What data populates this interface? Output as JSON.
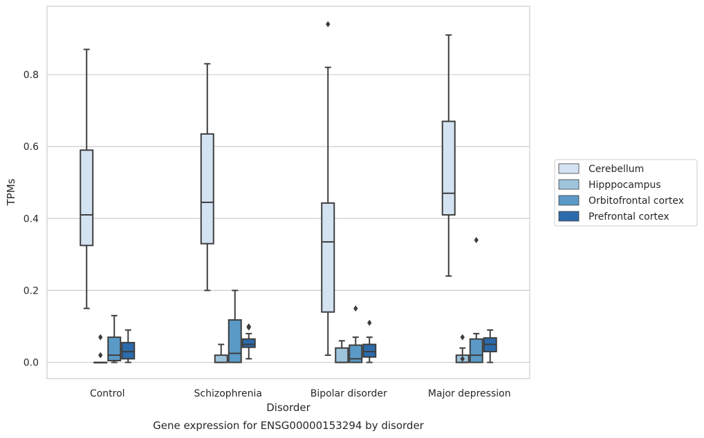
{
  "chart_data": {
    "type": "box",
    "title": "Gene expression for ENSG00000153294 by disorder",
    "xlabel": "Disorder",
    "ylabel": "TPMs",
    "ylim": [
      -0.045,
      0.99
    ],
    "yticks": [
      0.0,
      0.2,
      0.4,
      0.6,
      0.8
    ],
    "ytick_labels": [
      "0.0",
      "0.2",
      "0.4",
      "0.6",
      "0.8"
    ],
    "grid": "horizontal",
    "legend_position": "right",
    "categories": [
      "Control",
      "Schizophrenia",
      "Bipolar disorder",
      "Major depression"
    ],
    "series": [
      {
        "name": "Cerebellum",
        "color": "#d4e3f2",
        "boxes": [
          {
            "whisker_low": 0.15,
            "q1": 0.325,
            "median": 0.41,
            "q3": 0.59,
            "whisker_high": 0.87,
            "outliers": []
          },
          {
            "whisker_low": 0.2,
            "q1": 0.33,
            "median": 0.445,
            "q3": 0.635,
            "whisker_high": 0.83,
            "outliers": []
          },
          {
            "whisker_low": 0.02,
            "q1": 0.14,
            "median": 0.335,
            "q3": 0.443,
            "whisker_high": 0.82,
            "outliers": [
              0.94
            ]
          },
          {
            "whisker_low": 0.24,
            "q1": 0.41,
            "median": 0.47,
            "q3": 0.67,
            "whisker_high": 0.91,
            "outliers": []
          }
        ]
      },
      {
        "name": "Hipppocampus",
        "color": "#9ec4dc",
        "boxes": [
          {
            "whisker_low": 0.0,
            "q1": 0.0,
            "median": 0.0,
            "q3": 0.0,
            "whisker_high": 0.0,
            "outliers": [
              0.07,
              0.02
            ]
          },
          {
            "whisker_low": 0.0,
            "q1": 0.0,
            "median": 0.0,
            "q3": 0.02,
            "whisker_high": 0.05,
            "outliers": []
          },
          {
            "whisker_low": 0.0,
            "q1": 0.0,
            "median": 0.0,
            "q3": 0.04,
            "whisker_high": 0.06,
            "outliers": []
          },
          {
            "whisker_low": 0.0,
            "q1": 0.0,
            "median": 0.0,
            "q3": 0.02,
            "whisker_high": 0.04,
            "outliers": [
              0.07,
              0.01
            ]
          }
        ]
      },
      {
        "name": "Orbitofrontal cortex",
        "color": "#5b9ac7",
        "boxes": [
          {
            "whisker_low": 0.0,
            "q1": 0.005,
            "median": 0.02,
            "q3": 0.07,
            "whisker_high": 0.13,
            "outliers": []
          },
          {
            "whisker_low": 0.0,
            "q1": 0.0,
            "median": 0.025,
            "q3": 0.118,
            "whisker_high": 0.2,
            "outliers": []
          },
          {
            "whisker_low": 0.0,
            "q1": 0.0,
            "median": 0.01,
            "q3": 0.048,
            "whisker_high": 0.07,
            "outliers": [
              0.15
            ]
          },
          {
            "whisker_low": 0.0,
            "q1": 0.0,
            "median": 0.02,
            "q3": 0.065,
            "whisker_high": 0.08,
            "outliers": [
              0.34
            ]
          }
        ]
      },
      {
        "name": "Prefrontal cortex",
        "color": "#2c6bab",
        "boxes": [
          {
            "whisker_low": 0.0,
            "q1": 0.01,
            "median": 0.03,
            "q3": 0.055,
            "whisker_high": 0.09,
            "outliers": []
          },
          {
            "whisker_low": 0.01,
            "q1": 0.042,
            "median": 0.05,
            "q3": 0.065,
            "whisker_high": 0.08,
            "outliers": [
              0.1,
              0.097
            ]
          },
          {
            "whisker_low": 0.0,
            "q1": 0.015,
            "median": 0.03,
            "q3": 0.05,
            "whisker_high": 0.07,
            "outliers": [
              0.11
            ]
          },
          {
            "whisker_low": 0.0,
            "q1": 0.03,
            "median": 0.05,
            "q3": 0.068,
            "whisker_high": 0.09,
            "outliers": []
          }
        ]
      }
    ]
  }
}
